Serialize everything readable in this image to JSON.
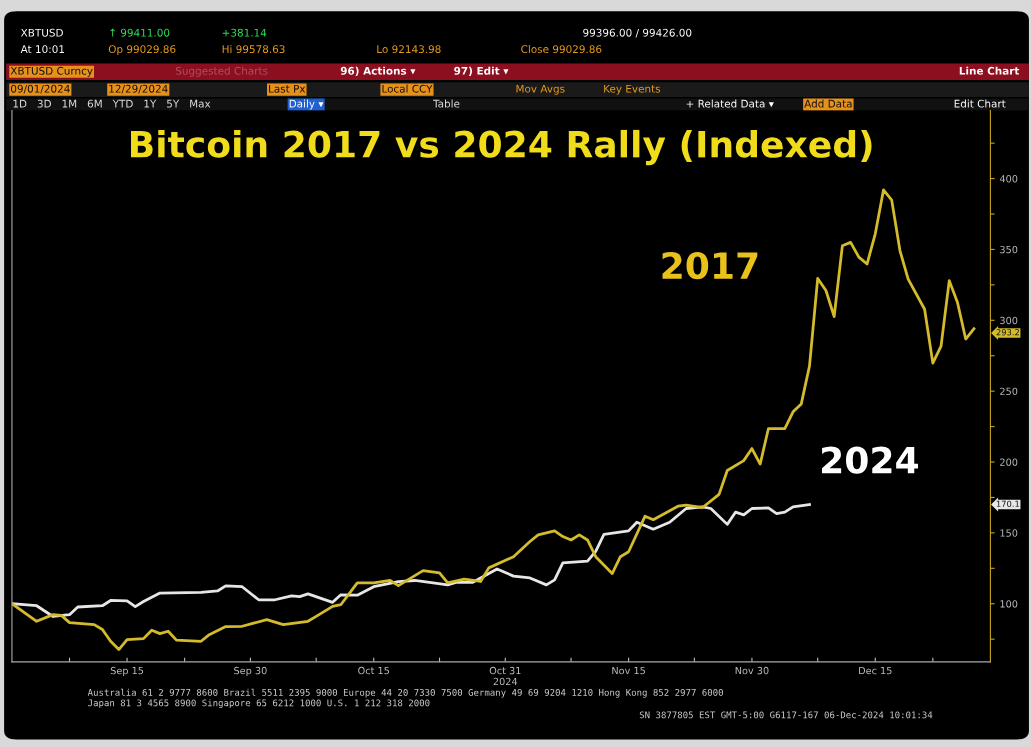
{
  "chart_data": {
    "type": "line",
    "title": "Bitcoin 2017 vs 2024 Rally (Indexed)",
    "xlim": [
      "2024-09-01",
      "2024-12-29"
    ],
    "xticks": [
      {
        "value": "2024-09-08",
        "label": null
      },
      {
        "value": "2024-09-15",
        "label": "Sep 15"
      },
      {
        "value": "2024-09-22",
        "label": null
      },
      {
        "value": "2024-09-30",
        "label": "Sep 30"
      },
      {
        "value": "2024-10-08",
        "label": null
      },
      {
        "value": "2024-10-15",
        "label": "Oct 15"
      },
      {
        "value": "2024-10-23",
        "label": null
      },
      {
        "value": "2024-10-31",
        "label": "Oct 31\n2024"
      },
      {
        "value": "2024-11-08",
        "label": null
      },
      {
        "value": "2024-11-15",
        "label": "Nov 15"
      },
      {
        "value": "2024-11-23",
        "label": null
      },
      {
        "value": "2024-11-30",
        "label": "Nov 30"
      },
      {
        "value": "2024-12-08",
        "label": null
      },
      {
        "value": "2024-12-15",
        "label": "Dec 15"
      },
      {
        "value": "2024-12-22",
        "label": null
      }
    ],
    "ylim": [
      59,
      448
    ],
    "yticks": [
      {
        "value": 75,
        "label": null
      },
      100,
      {
        "value": 125,
        "label": null
      },
      150,
      {
        "value": 175,
        "label": null
      },
      200,
      {
        "value": 225,
        "label": null
      },
      250,
      {
        "value": 275,
        "label": null
      },
      300,
      {
        "value": 325,
        "label": null
      },
      350,
      {
        "value": 375,
        "label": null
      },
      400,
      {
        "value": 425,
        "label": null
      }
    ],
    "grid": false,
    "legend": false,
    "marker": "none",
    "line_style": "solid",
    "series": [
      {
        "name": "2024",
        "color": "#e6e6e6",
        "x": [
          "2024-09-01",
          "2024-09-04",
          "2024-09-06",
          "2024-09-08",
          "2024-09-09",
          "2024-09-12",
          "2024-09-13",
          "2024-09-15",
          "2024-09-16",
          "2024-09-17",
          "2024-09-19",
          "2024-09-24",
          "2024-09-26",
          "2024-09-27",
          "2024-09-29",
          "2024-10-01",
          "2024-10-03",
          "2024-10-05",
          "2024-10-06",
          "2024-10-07",
          "2024-10-10",
          "2024-10-11",
          "2024-10-13",
          "2024-10-15",
          "2024-10-18",
          "2024-10-20",
          "2024-10-24",
          "2024-10-25",
          "2024-10-27",
          "2024-10-30",
          "2024-11-01",
          "2024-11-03",
          "2024-11-05",
          "2024-11-06",
          "2024-11-07",
          "2024-11-10",
          "2024-11-11",
          "2024-11-12",
          "2024-11-15",
          "2024-11-16",
          "2024-11-18",
          "2024-11-20",
          "2024-11-22",
          "2024-11-24",
          "2024-11-25",
          "2024-11-27",
          "2024-11-28",
          "2024-11-29",
          "2024-11-30",
          "2024-12-02",
          "2024-12-03",
          "2024-12-04",
          "2024-12-05",
          "2024-12-07"
        ],
        "values": [
          100,
          98.6,
          91,
          92.3,
          97.7,
          98.6,
          102.3,
          102,
          98,
          101.6,
          107.5,
          108,
          109,
          112.6,
          112,
          102.8,
          102.8,
          105.6,
          105,
          107,
          101,
          106.3,
          106,
          112,
          115.6,
          116.4,
          113.3,
          115,
          115,
          124.5,
          119.5,
          118.2,
          113.3,
          116.8,
          128.8,
          130,
          137,
          149,
          151.4,
          157.5,
          152.6,
          157.5,
          167.2,
          168.4,
          167.2,
          156,
          164.6,
          162.7,
          167.2,
          167.6,
          163.6,
          164.6,
          168.4,
          170
        ]
      },
      {
        "name": "2017",
        "color": "#d4bb2c",
        "x": [
          "2024-09-01",
          "2024-09-04",
          "2024-09-06",
          "2024-09-07",
          "2024-09-08",
          "2024-09-11",
          "2024-09-12",
          "2024-09-13",
          "2024-09-14",
          "2024-09-15",
          "2024-09-17",
          "2024-09-18",
          "2024-09-19",
          "2024-09-20",
          "2024-09-21",
          "2024-09-24",
          "2024-09-25",
          "2024-09-27",
          "2024-09-29",
          "2024-10-02",
          "2024-10-04",
          "2024-10-07",
          "2024-10-08",
          "2024-10-10",
          "2024-10-11",
          "2024-10-13",
          "2024-10-15",
          "2024-10-17",
          "2024-10-18",
          "2024-10-21",
          "2024-10-23",
          "2024-10-24",
          "2024-10-26",
          "2024-10-28",
          "2024-10-29",
          "2024-11-01",
          "2024-11-03",
          "2024-11-04",
          "2024-11-06",
          "2024-11-07",
          "2024-11-08",
          "2024-11-09",
          "2024-11-10",
          "2024-11-11",
          "2024-11-13",
          "2024-11-14",
          "2024-11-15",
          "2024-11-17",
          "2024-11-18",
          "2024-11-21",
          "2024-11-22",
          "2024-11-24",
          "2024-11-26",
          "2024-11-27",
          "2024-11-29",
          "2024-11-30",
          "2024-12-01",
          "2024-12-02",
          "2024-12-04",
          "2024-12-05",
          "2024-12-06",
          "2024-12-07",
          "2024-12-08",
          "2024-12-09",
          "2024-12-10",
          "2024-12-11",
          "2024-12-12",
          "2024-12-13",
          "2024-12-14",
          "2024-12-15",
          "2024-12-16",
          "2024-12-17",
          "2024-12-18",
          "2024-12-19",
          "2024-12-21",
          "2024-12-22",
          "2024-12-23",
          "2024-12-24",
          "2024-12-25",
          "2024-12-26",
          "2024-12-27"
        ],
        "values": [
          100,
          87.6,
          92.3,
          91.8,
          86.7,
          85.3,
          81.8,
          73.5,
          67.7,
          74.7,
          75.4,
          81.3,
          78.9,
          80.6,
          74.3,
          73.5,
          78.2,
          83.9,
          84.1,
          88.8,
          85.3,
          87.6,
          91.1,
          98.1,
          99.3,
          114.7,
          114.7,
          116.4,
          112.8,
          123.4,
          121.8,
          114.7,
          117.3,
          115.7,
          125.3,
          133.2,
          143.9,
          148.6,
          151.4,
          147.4,
          145,
          148.6,
          145,
          133.2,
          121.3,
          133.2,
          136.7,
          161.8,
          159.3,
          168.8,
          169.5,
          167.9,
          177.2,
          194,
          201,
          209.5,
          198.5,
          223.5,
          223.5,
          235.4,
          241,
          267.7,
          329.5,
          321,
          302.7,
          352.6,
          355,
          344.6,
          339.7,
          361,
          392,
          384.8,
          349.2,
          329,
          307.8,
          269.8,
          281.8,
          328,
          312.6,
          286.8,
          294
        ]
      }
    ],
    "annotations": [
      "293.2",
      "170.1",
      "XBTUSD",
      "↑ 99411.00",
      "+381.14",
      "99396.00 / 99426.00",
      "At 10:01",
      "Op 99029.86",
      "Hi 99578.63",
      "Lo 92143.98",
      "Close 99029.86",
      "XBTUSD Curncy",
      "Suggested Charts",
      "96) Actions ▾",
      "97) Edit ▾",
      "Line Chart",
      "09/01/2024",
      "12/29/2024",
      "Last Px",
      "Local CCY",
      "Mov Avgs",
      "Key Events",
      "1D   3D   1M   6M   YTD   1Y   5Y   Max",
      "Daily ▾",
      "Table",
      "+ Related Data ▾",
      "Add Data",
      "Edit Chart",
      "Australia 61 2 9777 8600 Brazil 5511 2395 9000 Europe 44 20 7330 7500 Germany 49 69 9204 1210 Hong Kong 852 2977 6000",
      "Japan 81 3 4565 8900 Singapore 65 6212 1000 U.S. 1 212 318 2000",
      "SN 3877805 EST GMT-5:00 G6117-167 06-Dec-2024 10:01:34"
    ]
  }
}
